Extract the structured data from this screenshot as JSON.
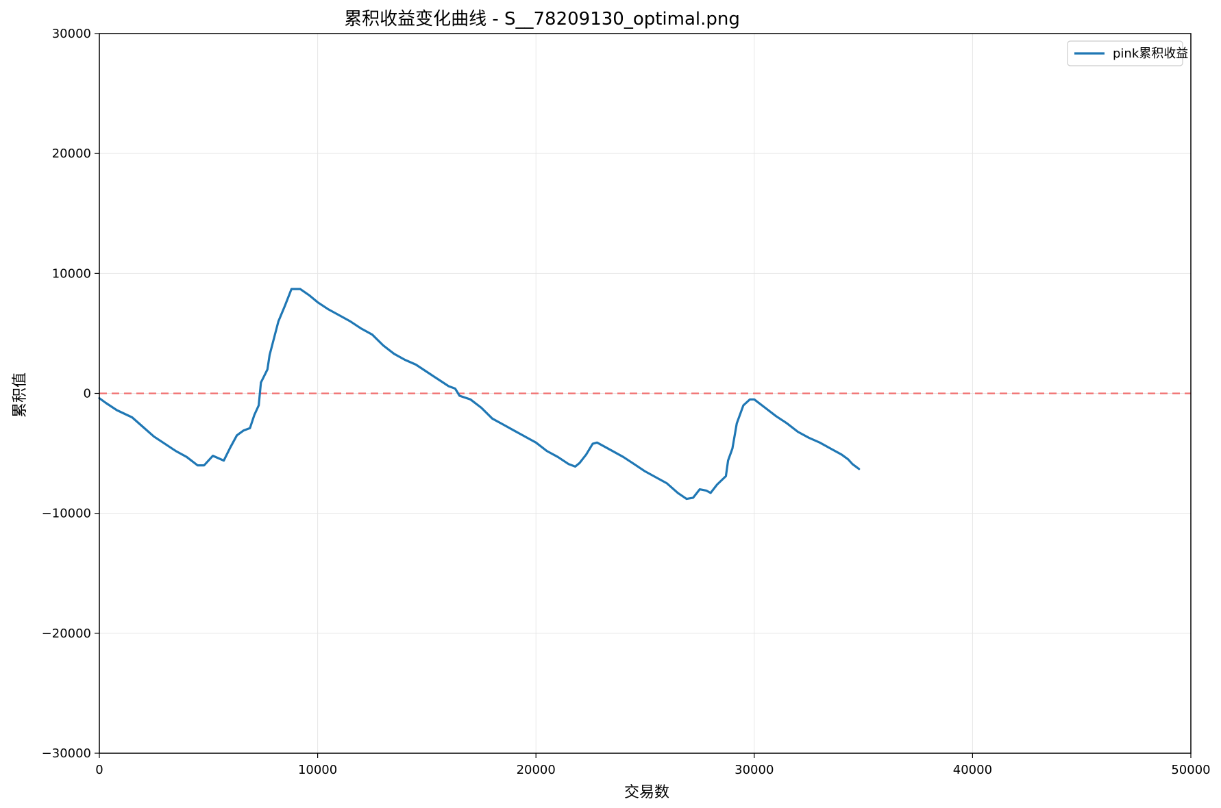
{
  "chart_data": {
    "type": "line",
    "title": "累积收益变化曲线 - S__78209130_optimal.png",
    "xlabel": "交易数",
    "ylabel": "累积值",
    "xlim": [
      0,
      50000
    ],
    "ylim": [
      -30000,
      30000
    ],
    "xticks": [
      "0",
      "10000",
      "20000",
      "30000",
      "40000",
      "50000"
    ],
    "yticks": [
      "30000",
      "20000",
      "10000",
      "0",
      "−10000",
      "−20000",
      "−30000"
    ],
    "grid": true,
    "legend": "top-right",
    "reference_line": {
      "y": 0,
      "style": "dashed",
      "color": "#f07070"
    },
    "colors": {
      "series": "#1f77b4",
      "reference": "#f07070",
      "grid": "#e6e6e6"
    },
    "series": [
      {
        "name": "pink累积收益",
        "x": [
          0,
          300,
          800,
          1500,
          2000,
          2500,
          3000,
          3500,
          4000,
          4500,
          4800,
          5200,
          5700,
          6000,
          6300,
          6600,
          6900,
          7100,
          7300,
          7400,
          7700,
          7800,
          8000,
          8200,
          8500,
          8800,
          9200,
          9600,
          10000,
          10500,
          11000,
          11500,
          12000,
          12500,
          13000,
          13500,
          14000,
          14500,
          15000,
          15500,
          16000,
          16300,
          16500,
          17000,
          17500,
          18000,
          18500,
          19000,
          19500,
          20000,
          20500,
          21000,
          21500,
          21800,
          22000,
          22300,
          22600,
          22800,
          23200,
          23600,
          24000,
          24500,
          25000,
          25500,
          26000,
          26500,
          26900,
          27200,
          27500,
          27800,
          28000,
          28300,
          28700,
          28800,
          29000,
          29200,
          29500,
          29800,
          30000,
          30500,
          31000,
          31500,
          32000,
          32500,
          33000,
          33500,
          34000,
          34300,
          34500,
          34800
        ],
        "values": [
          -400,
          -800,
          -1400,
          -2000,
          -2800,
          -3600,
          -4200,
          -4800,
          -5300,
          -6000,
          -6000,
          -5200,
          -5600,
          -4500,
          -3500,
          -3100,
          -2900,
          -1800,
          -1000,
          900,
          2000,
          3200,
          4600,
          6000,
          7300,
          8700,
          8700,
          8200,
          7600,
          7000,
          6500,
          6000,
          5400,
          4900,
          4000,
          3300,
          2800,
          2400,
          1800,
          1200,
          600,
          400,
          -200,
          -500,
          -1200,
          -2100,
          -2600,
          -3100,
          -3600,
          -4100,
          -4800,
          -5300,
          -5900,
          -6100,
          -5800,
          -5100,
          -4200,
          -4100,
          -4500,
          -4900,
          -5300,
          -5900,
          -6500,
          -7000,
          -7500,
          -8300,
          -8800,
          -8700,
          -8000,
          -8100,
          -8300,
          -7600,
          -6900,
          -5600,
          -4600,
          -2500,
          -1000,
          -500,
          -500,
          -1200,
          -1900,
          -2500,
          -3200,
          -3700,
          -4100,
          -4600,
          -5100,
          -5500,
          -5900,
          -6300
        ]
      }
    ]
  }
}
